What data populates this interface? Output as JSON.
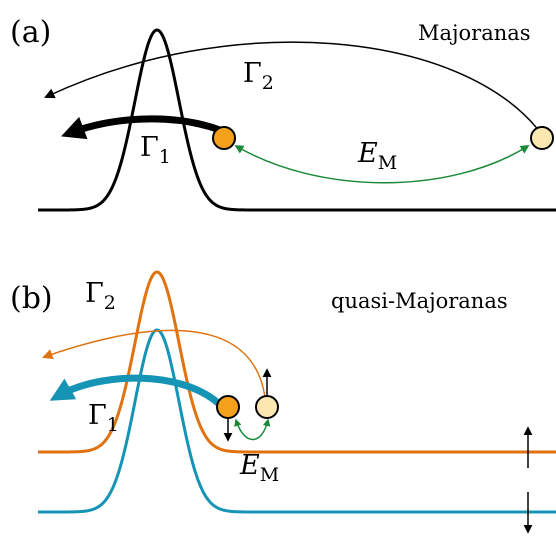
{
  "panel_a": {
    "label": "(a)",
    "title": "Majoranas",
    "gamma2": {
      "base": "Γ",
      "sub": "2"
    },
    "gamma1": {
      "base": "Γ",
      "sub": "1"
    },
    "energy": {
      "base": "E",
      "sub": "M"
    }
  },
  "panel_b": {
    "label": "(b)",
    "title": "quasi-Majoranas",
    "gamma2": {
      "base": "Γ",
      "sub": "2"
    },
    "gamma1": {
      "base": "Γ",
      "sub": "1"
    },
    "energy": {
      "base": "E",
      "sub": "M"
    }
  },
  "colors": {
    "black": "#000000",
    "orange": "#E0720F",
    "teal": "#1594B5",
    "green": "#1A8A3A",
    "dot_dark": "#F3A11A",
    "dot_light": "#FDE7B0"
  }
}
